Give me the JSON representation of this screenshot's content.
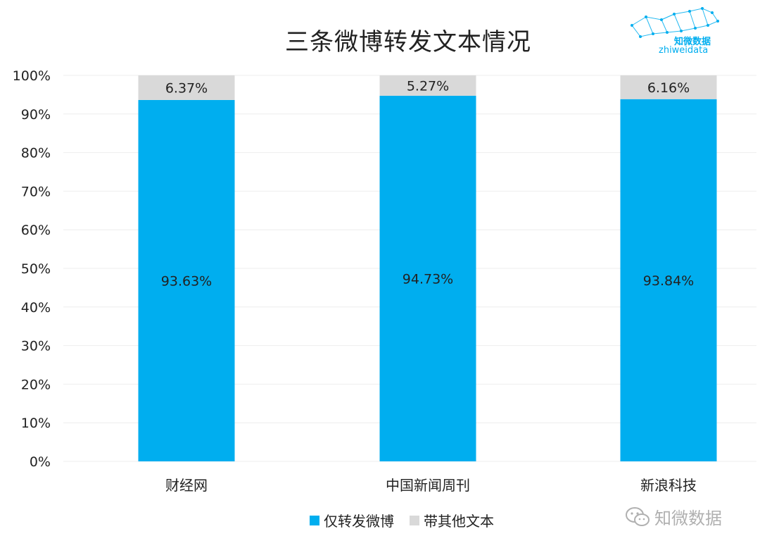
{
  "title": "三条微博转发文本情况",
  "logo": {
    "name_cn": "知微数据",
    "name_en": "zhiweidata"
  },
  "watermark": {
    "text": "知微数据"
  },
  "colors": {
    "primary": "#00aeef",
    "secondary": "#d9d9d9",
    "grid": "#eeeeee",
    "text": "#222222"
  },
  "chart_data": {
    "type": "bar",
    "stacked": true,
    "title": "三条微博转发文本情况",
    "categories": [
      "财经网",
      "中国新闻周刊",
      "新浪科技"
    ],
    "series": [
      {
        "name": "仅转发微博",
        "values": [
          93.63,
          94.73,
          93.84
        ],
        "labels": [
          "93.63%",
          "94.73%",
          "93.84%"
        ],
        "color": "#00aeef"
      },
      {
        "name": "带其他文本",
        "values": [
          6.37,
          5.27,
          6.16
        ],
        "labels": [
          "6.37%",
          "5.27%",
          "6.16%"
        ],
        "color": "#d9d9d9"
      }
    ],
    "ylim": [
      0,
      100
    ],
    "yticks": [
      "0%",
      "10%",
      "20%",
      "30%",
      "40%",
      "50%",
      "60%",
      "70%",
      "80%",
      "90%",
      "100%"
    ],
    "xlabel": "",
    "ylabel": "",
    "grid": true,
    "legend_position": "bottom"
  }
}
